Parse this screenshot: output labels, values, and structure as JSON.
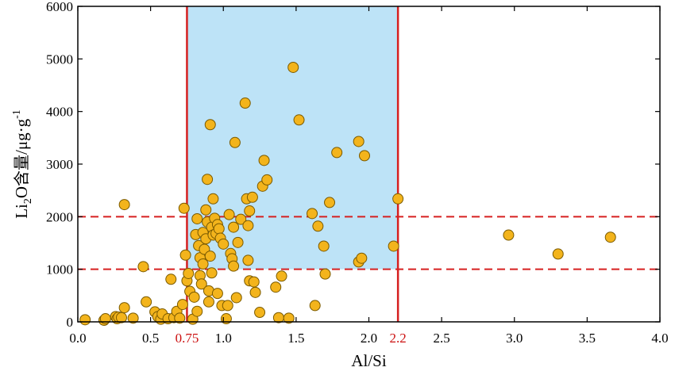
{
  "chart_data": {
    "type": "scatter",
    "title": "",
    "xlabel": "Al/Si",
    "ylabel": {
      "base": "Li",
      "subscript": "2",
      "rest": "O",
      "cjk": "含量",
      "unit": "/μg·g",
      "unit_sup": "-1"
    },
    "xlim": [
      0,
      4.0
    ],
    "ylim": [
      0,
      6000
    ],
    "x_ticks": [
      "0.0",
      "0.5",
      "1.0",
      "1.5",
      "2.0",
      "2.5",
      "3.0",
      "3.5",
      "4.0"
    ],
    "x_tick_values": [
      0,
      0.5,
      1.0,
      1.5,
      2.0,
      2.5,
      3.0,
      3.5,
      4.0
    ],
    "x_highlight_ticks": [
      {
        "value": 0.75,
        "label": "0.75"
      },
      {
        "value": 2.2,
        "label": "2.2"
      }
    ],
    "y_ticks": [
      "0",
      "1000",
      "2000",
      "3000",
      "4000",
      "5000",
      "6000"
    ],
    "y_tick_values": [
      0,
      1000,
      2000,
      3000,
      4000,
      5000,
      6000
    ],
    "shaded_region": {
      "x": [
        0.75,
        2.2
      ],
      "y": [
        1000,
        6000
      ],
      "color": "#bde3f7"
    },
    "vertical_lines": [
      0.75,
      2.2
    ],
    "horizontal_dashed_lines": [
      1000,
      2000
    ],
    "line_color": "#d62020",
    "marker_fill": "#f3b41c",
    "marker_edge": "#7a5a00",
    "points": [
      [
        0.05,
        40
      ],
      [
        0.18,
        30
      ],
      [
        0.19,
        60
      ],
      [
        0.26,
        100
      ],
      [
        0.27,
        60
      ],
      [
        0.28,
        90
      ],
      [
        0.3,
        80
      ],
      [
        0.32,
        270
      ],
      [
        0.32,
        2230
      ],
      [
        0.38,
        70
      ],
      [
        0.45,
        1050
      ],
      [
        0.47,
        380
      ],
      [
        0.53,
        190
      ],
      [
        0.55,
        100
      ],
      [
        0.57,
        50
      ],
      [
        0.58,
        150
      ],
      [
        0.62,
        60
      ],
      [
        0.64,
        810
      ],
      [
        0.66,
        80
      ],
      [
        0.68,
        200
      ],
      [
        0.7,
        70
      ],
      [
        0.72,
        330
      ],
      [
        0.73,
        2160
      ],
      [
        0.74,
        1270
      ],
      [
        0.75,
        780
      ],
      [
        0.76,
        920
      ],
      [
        0.77,
        580
      ],
      [
        0.79,
        50
      ],
      [
        0.8,
        470
      ],
      [
        0.81,
        1660
      ],
      [
        0.82,
        200
      ],
      [
        0.82,
        1960
      ],
      [
        0.83,
        1450
      ],
      [
        0.84,
        1220
      ],
      [
        0.84,
        880
      ],
      [
        0.85,
        720
      ],
      [
        0.86,
        1700
      ],
      [
        0.86,
        1100
      ],
      [
        0.87,
        1380
      ],
      [
        0.88,
        2130
      ],
      [
        0.88,
        1580
      ],
      [
        0.89,
        2710
      ],
      [
        0.89,
        1900
      ],
      [
        0.9,
        590
      ],
      [
        0.9,
        380
      ],
      [
        0.91,
        1250
      ],
      [
        0.91,
        3750
      ],
      [
        0.92,
        1800
      ],
      [
        0.92,
        930
      ],
      [
        0.93,
        2340
      ],
      [
        0.93,
        1650
      ],
      [
        0.94,
        1970
      ],
      [
        0.95,
        1680
      ],
      [
        0.96,
        1850
      ],
      [
        0.96,
        540
      ],
      [
        0.97,
        1770
      ],
      [
        0.98,
        1590
      ],
      [
        0.99,
        310
      ],
      [
        1.0,
        1480
      ],
      [
        1.02,
        60
      ],
      [
        1.03,
        310
      ],
      [
        1.04,
        2040
      ],
      [
        1.05,
        1300
      ],
      [
        1.06,
        1200
      ],
      [
        1.07,
        1800
      ],
      [
        1.07,
        1060
      ],
      [
        1.08,
        3410
      ],
      [
        1.09,
        460
      ],
      [
        1.1,
        1510
      ],
      [
        1.12,
        1950
      ],
      [
        1.15,
        4160
      ],
      [
        1.16,
        2340
      ],
      [
        1.17,
        1170
      ],
      [
        1.17,
        1830
      ],
      [
        1.18,
        780
      ],
      [
        1.18,
        2110
      ],
      [
        1.2,
        2370
      ],
      [
        1.21,
        760
      ],
      [
        1.22,
        560
      ],
      [
        1.25,
        180
      ],
      [
        1.27,
        2580
      ],
      [
        1.28,
        3070
      ],
      [
        1.3,
        2700
      ],
      [
        1.36,
        660
      ],
      [
        1.38,
        80
      ],
      [
        1.4,
        870
      ],
      [
        1.45,
        70
      ],
      [
        1.48,
        4840
      ],
      [
        1.52,
        3840
      ],
      [
        1.61,
        2060
      ],
      [
        1.63,
        310
      ],
      [
        1.65,
        1820
      ],
      [
        1.69,
        1440
      ],
      [
        1.7,
        910
      ],
      [
        1.73,
        2270
      ],
      [
        1.78,
        3220
      ],
      [
        1.93,
        1140
      ],
      [
        1.93,
        3430
      ],
      [
        1.95,
        1210
      ],
      [
        1.97,
        3160
      ],
      [
        2.17,
        1440
      ],
      [
        2.2,
        2340
      ],
      [
        2.96,
        1650
      ],
      [
        3.3,
        1290
      ],
      [
        3.66,
        1610
      ]
    ]
  }
}
